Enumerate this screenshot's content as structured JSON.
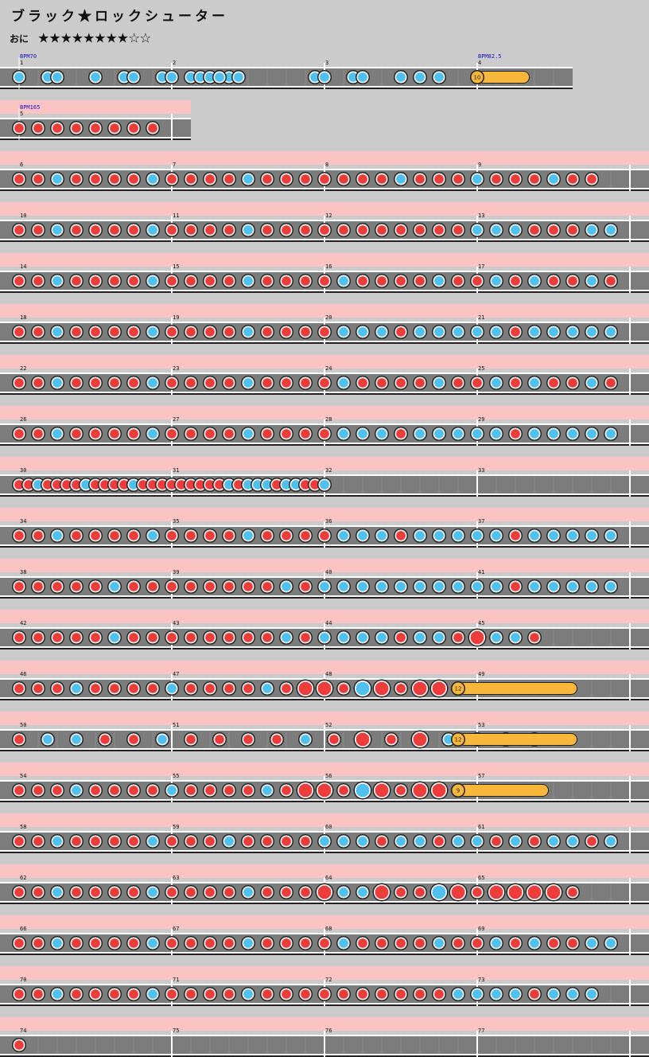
{
  "song": {
    "title": "ブラック★ロックシューター",
    "course": "おに",
    "difficulty_stars": "★★★★★★★★☆☆",
    "level": 8,
    "max_level": 10
  },
  "colors": {
    "background": "#cbcbcb",
    "lane": "#7c7c7c",
    "gogo_band": "#fbc3c3",
    "don": "#ee3b3b",
    "ka": "#4fc0f0",
    "drumroll": "#f6b73a",
    "bpm_text": "#1414c8"
  },
  "bpm_changes": [
    {
      "measure": 1,
      "label": "BPM70"
    },
    {
      "measure": 4,
      "label": "BPM82.5"
    },
    {
      "measure": 5,
      "label": "BPM165"
    }
  ],
  "balloons": [
    {
      "measure": 4,
      "hits": "10"
    },
    {
      "measure": 48,
      "hits": "12"
    },
    {
      "measure": 52,
      "hits": "12"
    },
    {
      "measure": 56,
      "hits": "9"
    }
  ],
  "rows": [
    {
      "gogo": false,
      "measures": [
        "1",
        "2",
        "3",
        "4"
      ],
      "notes": "ka ka ka ka ka ka ka ka ka ka ka ka ka ka ka ka ka ka ka ka ka ka"
    },
    {
      "gogo": true,
      "measures": [
        "5"
      ],
      "notes": "don don don don don don don don"
    },
    {
      "gogo": true,
      "measures": [
        "6",
        "7",
        "8",
        "9"
      ],
      "notes": "don don ka don don don don ka don don don don ka don don don don don don don ka don don don ka don don don ka don don"
    },
    {
      "gogo": true,
      "measures": [
        "10",
        "11",
        "12",
        "13"
      ],
      "notes": "don don ka don don don don ka don don don don ka don don don don don don don don don don don ka ka ka don don don ka ka"
    },
    {
      "gogo": true,
      "measures": [
        "14",
        "15",
        "16",
        "17"
      ],
      "notes": "don don ka don don don don ka don don don don ka don don don don ka don don don don ka don don ka don ka don don ka don"
    },
    {
      "gogo": true,
      "measures": [
        "18",
        "19",
        "20",
        "21"
      ],
      "notes": "don don ka don don don don ka don don don don ka don don don don ka ka ka don ka ka ka ka ka don ka ka ka ka ka"
    },
    {
      "gogo": true,
      "measures": [
        "22",
        "23",
        "24",
        "25"
      ],
      "notes": "don don ka don don don don ka don don don don ka don don don don ka don don don don ka don don ka don ka don don ka don"
    },
    {
      "gogo": true,
      "measures": [
        "26",
        "27",
        "28",
        "29"
      ],
      "notes": "don don ka don don don don ka don don don don ka don don don don ka ka ka don ka ka ka ka ka don ka ka ka ka ka"
    },
    {
      "gogo": true,
      "measures": [
        "30",
        "31",
        "32",
        "33"
      ],
      "notes": "don don ka don don don don ka don don don don ka don don don don don don don don don ka don ka ka ka don ka ka don don ka"
    },
    {
      "gogo": true,
      "measures": [
        "34",
        "35",
        "36",
        "37"
      ],
      "notes": "don don ka don don don don ka don don don don ka don don don don ka ka ka don ka ka ka ka ka don ka ka ka ka ka"
    },
    {
      "gogo": true,
      "measures": [
        "38",
        "39",
        "40",
        "41"
      ],
      "notes": "don don don don don ka don don don don don don don don ka don ka ka ka ka ka ka ka ka ka ka don ka ka ka ka ka"
    },
    {
      "gogo": true,
      "measures": [
        "42",
        "43",
        "44",
        "45"
      ],
      "notes": "don don don don don ka don don don don don don don don ka don ka ka ka ka don ka ka don don ka ka don"
    },
    {
      "gogo": true,
      "measures": [
        "46",
        "47",
        "48",
        "49"
      ],
      "notes": "don don don ka don don don don ka don don don don ka don don don don ka don don don don don"
    },
    {
      "gogo": true,
      "measures": [
        "50",
        "51",
        "52",
        "53"
      ],
      "notes": "don ka ka don don ka don don don don ka don don don don ka don ka don"
    },
    {
      "gogo": true,
      "measures": [
        "54",
        "55",
        "56",
        "57"
      ],
      "notes": "don don don ka don don don don ka don don don don ka don don don don ka don don don don don"
    },
    {
      "gogo": true,
      "measures": [
        "58",
        "59",
        "60",
        "61"
      ],
      "notes": "don don ka don don don don ka don don don ka don don don don ka ka ka don ka ka don ka ka don ka don ka ka don ka"
    },
    {
      "gogo": true,
      "measures": [
        "62",
        "63",
        "64",
        "65"
      ],
      "notes": "don don ka don don don don ka don don don don ka don don don don ka ka don don don ka don don don don don don don"
    },
    {
      "gogo": true,
      "measures": [
        "66",
        "67",
        "68",
        "69"
      ],
      "notes": "don don ka don don don don ka don don don don ka don don don don ka don don don don ka don don ka don ka don don ka ka"
    },
    {
      "gogo": true,
      "measures": [
        "70",
        "71",
        "72",
        "73"
      ],
      "notes": "don don ka don don don don ka don don don don ka don don don don don don don don don don ka ka ka ka don ka ka ka"
    },
    {
      "gogo": true,
      "measures": [
        "74",
        "75",
        "76",
        "77"
      ],
      "notes": "don"
    }
  ]
}
